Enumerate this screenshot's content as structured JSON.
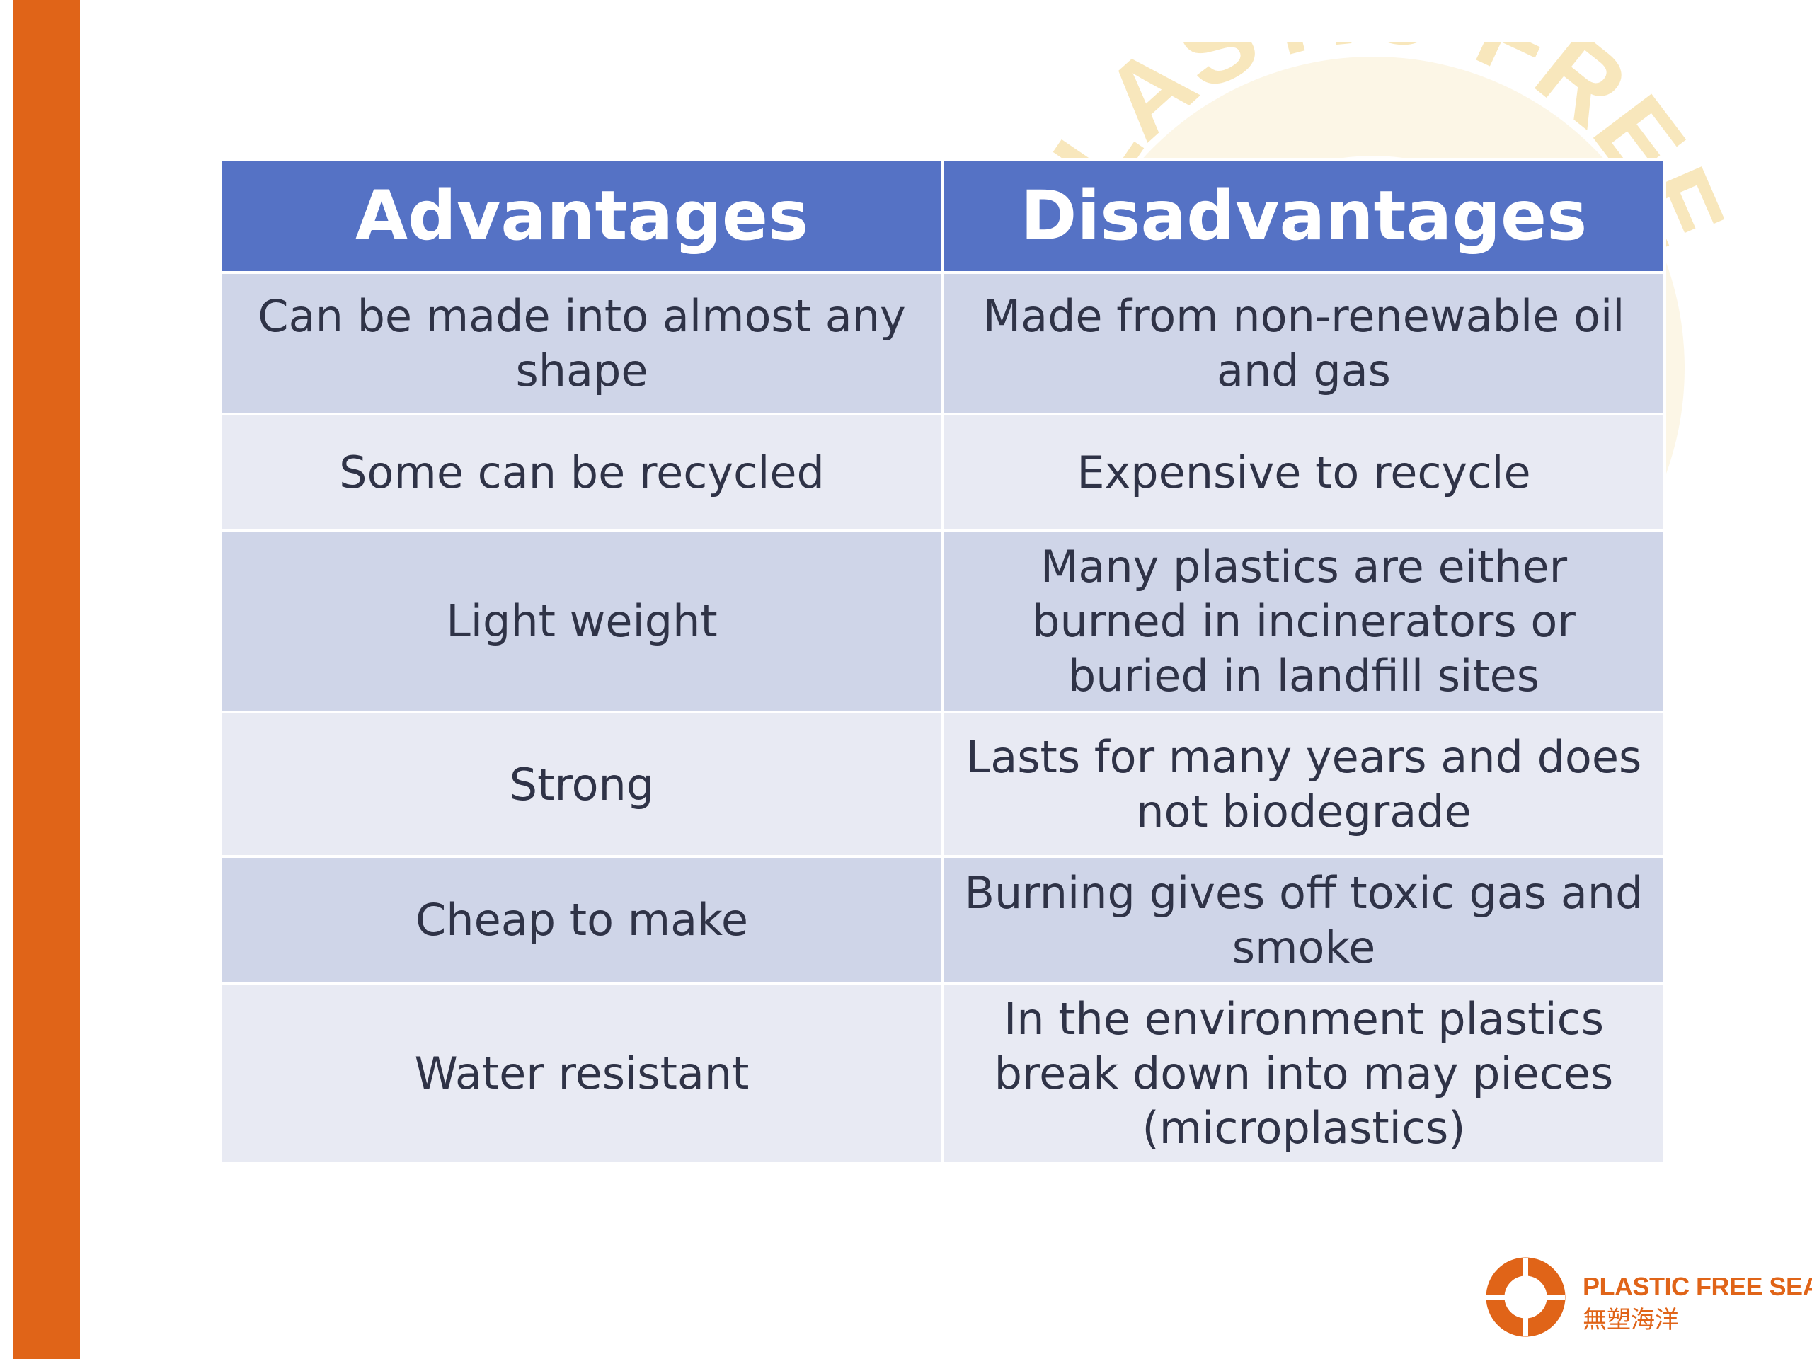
{
  "watermark": {
    "text": "PLASTIC-FREE",
    "color": "#f6dfa6"
  },
  "colors": {
    "accent": "#e06418",
    "header_bg": "#5572c5",
    "row_odd_bg": "#cfd5e8",
    "row_even_bg": "#e8eaf3",
    "text": "#2f3347"
  },
  "table": {
    "headers": [
      "Advantages",
      "Disadvantages"
    ],
    "rows": [
      {
        "advantage": "Can be made into almost any shape",
        "disadvantage": "Made from non-renewable oil and gas"
      },
      {
        "advantage": "Some can be recycled",
        "disadvantage": "Expensive to recycle"
      },
      {
        "advantage": "Light weight",
        "disadvantage": "Many plastics are either burned in incinerators or buried in landfill sites"
      },
      {
        "advantage": "Strong",
        "disadvantage": "Lasts for many years and does not biodegrade"
      },
      {
        "advantage": "Cheap to make",
        "disadvantage": "Burning gives off toxic gas and smoke"
      },
      {
        "advantage": "Water resistant",
        "disadvantage": "In the environment plastics break down into may pieces (microplastics)"
      }
    ]
  },
  "logo": {
    "name_en": "PLASTIC FREE SEAS",
    "name_zh": "無塑海洋",
    "icon": "life-ring-icon"
  }
}
